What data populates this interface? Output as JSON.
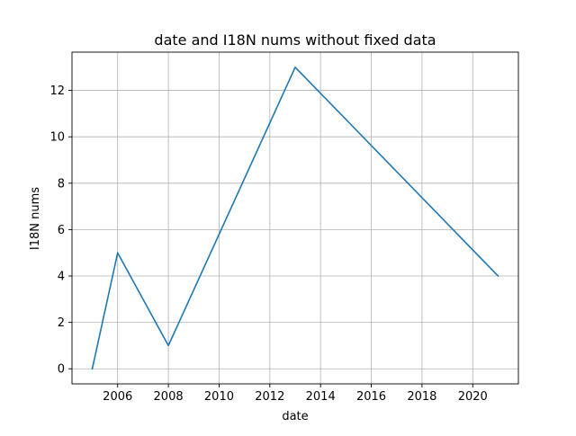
{
  "chart_data": {
    "type": "line",
    "title": "date and I18N nums without fixed data",
    "xlabel": "date",
    "ylabel": "I18N nums",
    "x": [
      2005,
      2006,
      2008,
      2013,
      2021
    ],
    "series": [
      {
        "values": [
          0,
          5,
          1,
          13,
          4
        ],
        "color": "#1f77b4"
      }
    ],
    "xlim": [
      2004.2,
      2021.8
    ],
    "ylim": [
      -0.65,
      13.65
    ],
    "xticks": [
      2006,
      2008,
      2010,
      2012,
      2014,
      2016,
      2018,
      2020
    ],
    "yticks": [
      0,
      2,
      4,
      6,
      8,
      10,
      12
    ],
    "grid": true,
    "legend": "none"
  }
}
